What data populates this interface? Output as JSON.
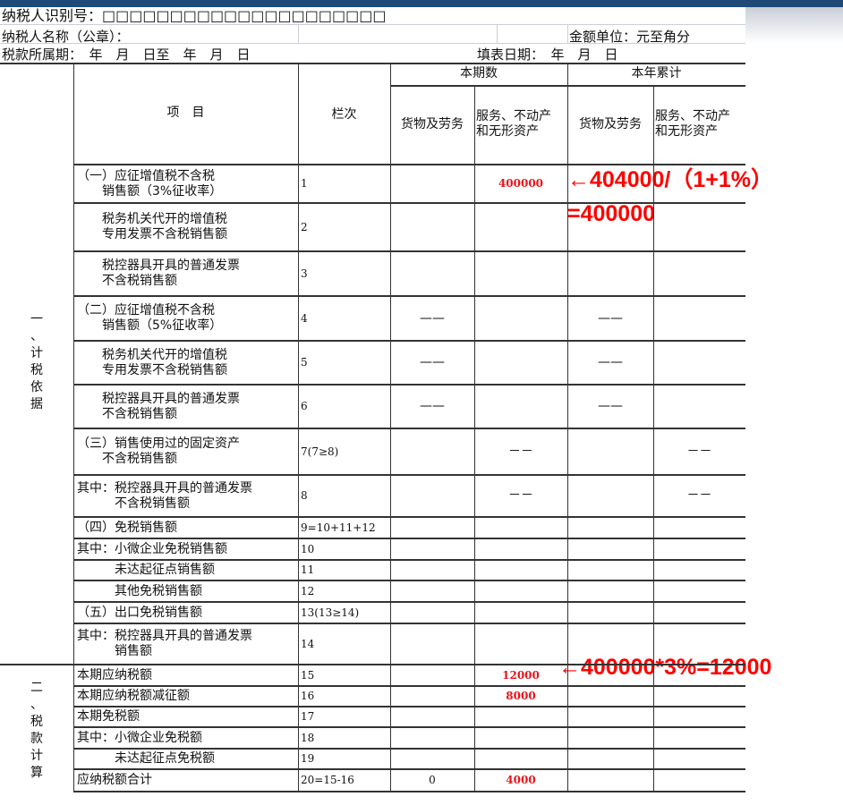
{
  "header": {
    "taxpayer_id_label": "纳税人识别号：□□□□□□□□□□□□□□□□□□□□□",
    "taxpayer_name_label": "纳税人名称（公章）：",
    "unit_label": "金额单位：元至角分",
    "period_label": "税款所属期：　年　月　日至　年　月　日",
    "fill_date_label": "填表日期：　年　月　日"
  },
  "table": {
    "col_item": "项　目",
    "col_line": "栏次",
    "group_current": "本期数",
    "group_year": "本年累计",
    "sub_goods": "货物及劳务",
    "sub_services": "服务、不动产\n和无形资产",
    "section1": "一\n、\n计\n税\n依\n据",
    "section2": "二\n、\n税\n款\n计\n算",
    "rows": [
      {
        "item": "（一）应征增值税不含税\n　　销售额（3%征收率）",
        "line": "1",
        "c1": "",
        "c2": "400000",
        "c3": "",
        "c4": ""
      },
      {
        "item": "　　税务机关代开的增值税\n　　专用发票不含税销售额",
        "line": "2",
        "c1": "",
        "c2": "",
        "c3": "",
        "c4": ""
      },
      {
        "item": "　　税控器具开具的普通发票\n　　不含税销售额",
        "line": "3",
        "c1": "",
        "c2": "",
        "c3": "",
        "c4": ""
      },
      {
        "item": "（二）应征增值税不含税\n　　销售额（5%征收率）",
        "line": "4",
        "c1": "——",
        "c2": "",
        "c3": "——",
        "c4": ""
      },
      {
        "item": "　　税务机关代开的增值税\n　　专用发票不含税销售额",
        "line": "5",
        "c1": "——",
        "c2": "",
        "c3": "——",
        "c4": ""
      },
      {
        "item": "　　税控器具开具的普通发票\n　　不含税销售额",
        "line": "6",
        "c1": "——",
        "c2": "",
        "c3": "——",
        "c4": ""
      },
      {
        "item": "（三）销售使用过的固定资产\n　　不含税销售额",
        "line": "7(7≥8)",
        "c1": "",
        "c2": "－－",
        "c3": "",
        "c4": "－－"
      },
      {
        "item": "其中：税控器具开具的普通发票\n　　　不含税销售额",
        "line": "8",
        "c1": "",
        "c2": "－－",
        "c3": "",
        "c4": "－－"
      },
      {
        "item": "（四）免税销售额",
        "line": "9=10+11+12",
        "c1": "",
        "c2": "",
        "c3": "",
        "c4": ""
      },
      {
        "item": "其中：小微企业免税销售额",
        "line": "10",
        "c1": "",
        "c2": "",
        "c3": "",
        "c4": ""
      },
      {
        "item": "　　　未达起征点销售额",
        "line": "11",
        "c1": "",
        "c2": "",
        "c3": "",
        "c4": ""
      },
      {
        "item": "　　　其他免税销售额",
        "line": "12",
        "c1": "",
        "c2": "",
        "c3": "",
        "c4": ""
      },
      {
        "item": "（五）出口免税销售额",
        "line": "13(13≥14)",
        "c1": "",
        "c2": "",
        "c3": "",
        "c4": ""
      },
      {
        "item": "其中：税控器具开具的普通发票\n　　　销售额",
        "line": "14",
        "c1": "",
        "c2": "",
        "c3": "",
        "c4": ""
      },
      {
        "item": "本期应纳税额",
        "line": "15",
        "c1": "",
        "c2": "12000",
        "c3": "",
        "c4": ""
      },
      {
        "item": "本期应纳税额减征额",
        "line": "16",
        "c1": "",
        "c2": "8000",
        "c3": "",
        "c4": ""
      },
      {
        "item": "本期免税额",
        "line": "17",
        "c1": "",
        "c2": "",
        "c3": "",
        "c4": ""
      },
      {
        "item": "其中：小微企业免税额",
        "line": "18",
        "c1": "",
        "c2": "",
        "c3": "",
        "c4": ""
      },
      {
        "item": "　　　未达起征点免税额",
        "line": "19",
        "c1": "",
        "c2": "",
        "c3": "",
        "c4": ""
      },
      {
        "item": "应纳税额合计",
        "line": "20=15-16",
        "c1": "0",
        "c2": "4000",
        "c3": "",
        "c4": ""
      }
    ]
  },
  "annotations": {
    "a1": "←404000/（1+1%）",
    "a2": "=400000",
    "a3": "←400000*3%=12000"
  },
  "colors": {
    "highlight": "#e8141a"
  }
}
